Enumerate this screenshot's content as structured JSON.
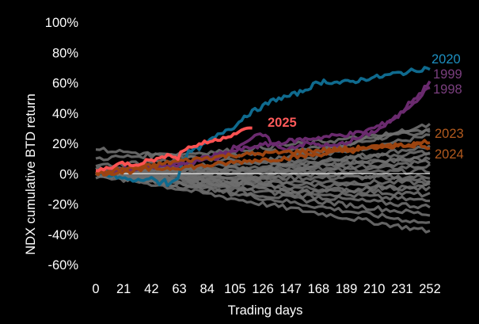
{
  "chart_data": {
    "type": "line",
    "xlabel": "Trading days",
    "ylabel": "NDX cumulative BTD return",
    "xlim": [
      0,
      252
    ],
    "ylim": [
      -60,
      100
    ],
    "x_ticks": [
      0,
      21,
      42,
      63,
      84,
      105,
      126,
      147,
      168,
      189,
      210,
      231,
      252
    ],
    "x_tick_labels": [
      "0",
      "21",
      "42",
      "63",
      "84",
      "105",
      "126",
      "147",
      "168",
      "189",
      "210",
      "231",
      "252"
    ],
    "y_ticks": [
      -60,
      -40,
      -20,
      0,
      20,
      40,
      60,
      80,
      100
    ],
    "y_tick_labels": [
      "-60%",
      "-40%",
      "-20%",
      "0%",
      "20%",
      "40%",
      "60%",
      "80%",
      "100%"
    ],
    "grid": false,
    "zero_line_color": "#ffffff",
    "colors": {
      "background": "#000000",
      "text": "#ffffff",
      "other_years": "#6e6e6e",
      "s2025": "#ff5252",
      "s2020": "#0f6a8e",
      "s1999": "#6a2a6e",
      "s1998": "#6a2a6e",
      "s2023": "#9c4410",
      "s2024": "#9c4410"
    },
    "highlighted_series": [
      {
        "name": "2020",
        "color": "#0f6a8e",
        "label_color": "#1d8fc0",
        "x": [
          0,
          15,
          30,
          40,
          48,
          52,
          55,
          62,
          66,
          70,
          80,
          90,
          100,
          105,
          112,
          125,
          135,
          145,
          155,
          165,
          172,
          185,
          195,
          205,
          215,
          225,
          235,
          245,
          252
        ],
        "y": [
          0,
          -2,
          -5,
          -3,
          -6,
          -4,
          -8,
          -2,
          10,
          14,
          18,
          24,
          30,
          31,
          38,
          44,
          49,
          51,
          54,
          59,
          61,
          60,
          61,
          63,
          64,
          66,
          67,
          69,
          70
        ]
      },
      {
        "name": "1999",
        "color": "#6a2a6e",
        "label_color": "#7b3f7f",
        "x": [
          0,
          30,
          60,
          90,
          120,
          150,
          180,
          200,
          215,
          228,
          238,
          246,
          252
        ],
        "y": [
          0,
          3,
          6,
          12,
          18,
          22,
          25,
          27,
          32,
          38,
          48,
          54,
          62
        ]
      },
      {
        "name": "1998",
        "color": "#6a2a6e",
        "label_color": "#7b3f7f",
        "x": [
          0,
          30,
          60,
          75,
          90,
          110,
          125,
          140,
          160,
          180,
          200,
          215,
          228,
          238,
          246,
          252
        ],
        "y": [
          0,
          4,
          6,
          8,
          10,
          20,
          26,
          16,
          20,
          18,
          24,
          30,
          38,
          46,
          52,
          58
        ]
      },
      {
        "name": "2023",
        "color": "#9c4410",
        "label_color": "#b25a1e",
        "x": [
          0,
          20,
          40,
          60,
          80,
          100,
          120,
          140,
          160,
          180,
          200,
          220,
          240,
          252
        ],
        "y": [
          0,
          3,
          5,
          8,
          10,
          12,
          13,
          14,
          15,
          16,
          17,
          18,
          19,
          22
        ]
      },
      {
        "name": "2024",
        "color": "#9c4410",
        "label_color": "#b25a1e",
        "x": [
          0,
          20,
          40,
          60,
          80,
          100,
          120,
          140,
          160,
          180,
          200,
          220,
          240,
          252
        ],
        "y": [
          0,
          1,
          3,
          4,
          5,
          7,
          9,
          10,
          12,
          14,
          16,
          18,
          20,
          16
        ]
      },
      {
        "name": "2025",
        "color": "#ff5252",
        "label_color": "#ff5a5a",
        "x": [
          0,
          10,
          20,
          30,
          40,
          50,
          55,
          62,
          64,
          70,
          80,
          90,
          100,
          110,
          118
        ],
        "y": [
          2,
          4,
          7,
          6,
          9,
          10,
          14,
          9,
          15,
          17,
          20,
          22,
          25,
          28,
          31
        ]
      }
    ],
    "other_series": [
      {
        "x": [
          0,
          126,
          252
        ],
        "y": [
          0,
          8,
          30
        ]
      },
      {
        "x": [
          0,
          126,
          252
        ],
        "y": [
          0,
          5,
          25
        ]
      },
      {
        "x": [
          0,
          126,
          252
        ],
        "y": [
          0,
          3,
          18
        ]
      },
      {
        "x": [
          0,
          126,
          252
        ],
        "y": [
          0,
          2,
          12
        ]
      },
      {
        "x": [
          0,
          126,
          252
        ],
        "y": [
          0,
          1,
          8
        ]
      },
      {
        "x": [
          0,
          126,
          252
        ],
        "y": [
          0,
          0,
          5
        ]
      },
      {
        "x": [
          0,
          126,
          252
        ],
        "y": [
          0,
          -2,
          2
        ]
      },
      {
        "x": [
          0,
          126,
          252
        ],
        "y": [
          0,
          -3,
          -2
        ]
      },
      {
        "x": [
          0,
          126,
          252
        ],
        "y": [
          0,
          -5,
          -6
        ]
      },
      {
        "x": [
          0,
          126,
          252
        ],
        "y": [
          0,
          -6,
          -10
        ]
      },
      {
        "x": [
          0,
          126,
          252
        ],
        "y": [
          0,
          -8,
          -14
        ]
      },
      {
        "x": [
          0,
          126,
          252
        ],
        "y": [
          0,
          -10,
          -18
        ]
      },
      {
        "x": [
          0,
          126,
          252
        ],
        "y": [
          0,
          -12,
          -22
        ]
      },
      {
        "x": [
          0,
          126,
          252
        ],
        "y": [
          0,
          -14,
          -27
        ]
      },
      {
        "x": [
          0,
          126,
          252
        ],
        "y": [
          0,
          -16,
          -33
        ]
      },
      {
        "x": [
          0,
          126,
          252
        ],
        "y": [
          0,
          -20,
          -38
        ]
      },
      {
        "x": [
          0,
          100,
          180,
          252
        ],
        "y": [
          10,
          15,
          22,
          28
        ]
      },
      {
        "x": [
          0,
          100,
          180,
          252
        ],
        "y": [
          5,
          12,
          18,
          32
        ]
      },
      {
        "x": [
          0,
          100,
          180,
          252
        ],
        "y": [
          -3,
          -8,
          10,
          14
        ]
      },
      {
        "x": [
          0,
          100,
          180,
          252
        ],
        "y": [
          3,
          4,
          0,
          -4
        ]
      },
      {
        "x": [
          0,
          80,
          160,
          252
        ],
        "y": [
          16,
          10,
          6,
          10
        ]
      },
      {
        "x": [
          0,
          80,
          160,
          252
        ],
        "y": [
          0,
          -4,
          -12,
          -8
        ]
      }
    ]
  }
}
